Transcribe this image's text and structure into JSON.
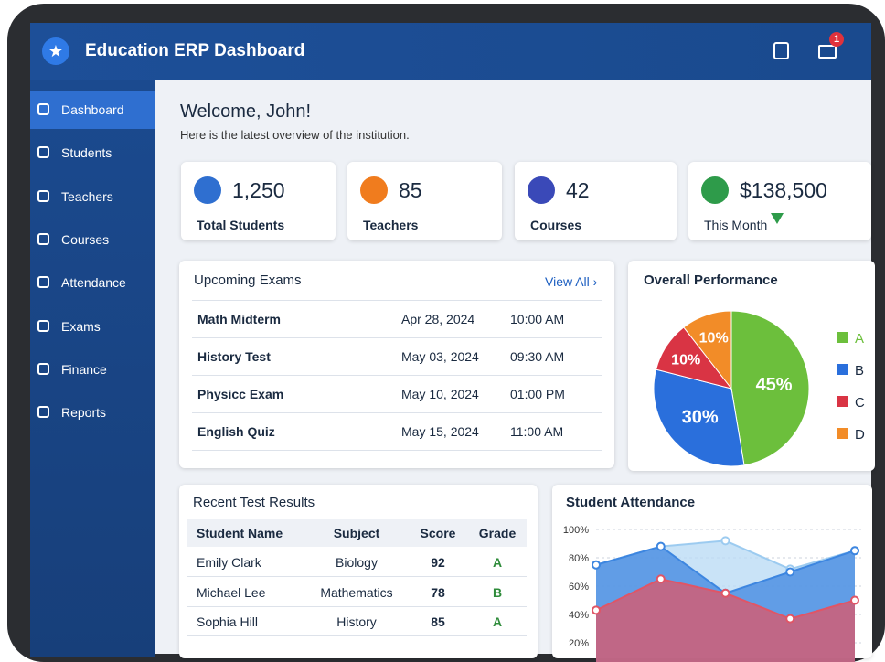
{
  "header": {
    "title": "Education ERP Dashboard",
    "badge": "1"
  },
  "sidebar": {
    "items": [
      "Dashboard",
      "Students",
      "Teachers",
      "Courses",
      "Attendance",
      "Exams",
      "Finance",
      "Reports"
    ]
  },
  "welcome": {
    "title": "Welcome, John!",
    "subtitle": "Here is the latest overview of the institution."
  },
  "stats": [
    {
      "value": "1,250",
      "label": "Total Students"
    },
    {
      "value": "85",
      "label": "Teachers"
    },
    {
      "value": "42",
      "label": "Courses"
    },
    {
      "value": "$138,500",
      "label": "This Month"
    }
  ],
  "exams": {
    "title": "Upcoming Exams",
    "link": "View All ›",
    "rows": [
      [
        "Math Midterm",
        "Apr 28, 2024",
        "10:00 AM"
      ],
      [
        "History Test",
        "May 03, 2024",
        "09:30 AM"
      ],
      [
        "Physicc Exam",
        "May 10, 2024",
        "01:00 PM"
      ],
      [
        "English Quiz",
        "May 15, 2024",
        "11:00 AM"
      ]
    ]
  },
  "results": {
    "title": "Recent Test Results",
    "headers": [
      "Student Name",
      "Subject",
      "Score",
      "Grade"
    ],
    "rows": [
      [
        "Emily Clark",
        "Biology",
        92,
        "A"
      ],
      [
        "Michael Lee",
        "Mathematics",
        78,
        "B"
      ],
      [
        "Sophia Hill",
        "History",
        85,
        "A"
      ]
    ]
  },
  "chart_data": [
    {
      "type": "pie",
      "title": "Overall Performance",
      "categories": [
        "A",
        "B",
        "C",
        "D"
      ],
      "values": [
        45,
        30,
        10,
        10
      ],
      "value_labels": [
        "45%",
        "30%",
        "10%",
        "10%"
      ],
      "colors": [
        "#6cbf3c",
        "#2a6fdc",
        "#d93444",
        "#f28c28"
      ]
    },
    {
      "type": "area",
      "title": "Student Attendance",
      "categories": [
        null,
        null,
        null,
        null,
        null
      ],
      "series": [
        {
          "name": null,
          "color": "#bcdcf5",
          "values": [
            75,
            88,
            92,
            72,
            85
          ]
        },
        {
          "name": null,
          "color": "#3d86e0",
          "values": [
            75,
            88,
            55,
            70,
            85
          ]
        },
        {
          "name": null,
          "color": "#e05566",
          "values": [
            43,
            65,
            55,
            37,
            50
          ]
        }
      ],
      "ylim": [
        0,
        100
      ],
      "yticks": [
        {
          "value": 20,
          "label": "20%"
        },
        {
          "value": 40,
          "label": "40%"
        },
        {
          "value": 60,
          "label": "60%"
        },
        {
          "value": 80,
          "label": "80%"
        },
        {
          "value": 100,
          "label": "100%"
        }
      ],
      "grid": true
    }
  ]
}
